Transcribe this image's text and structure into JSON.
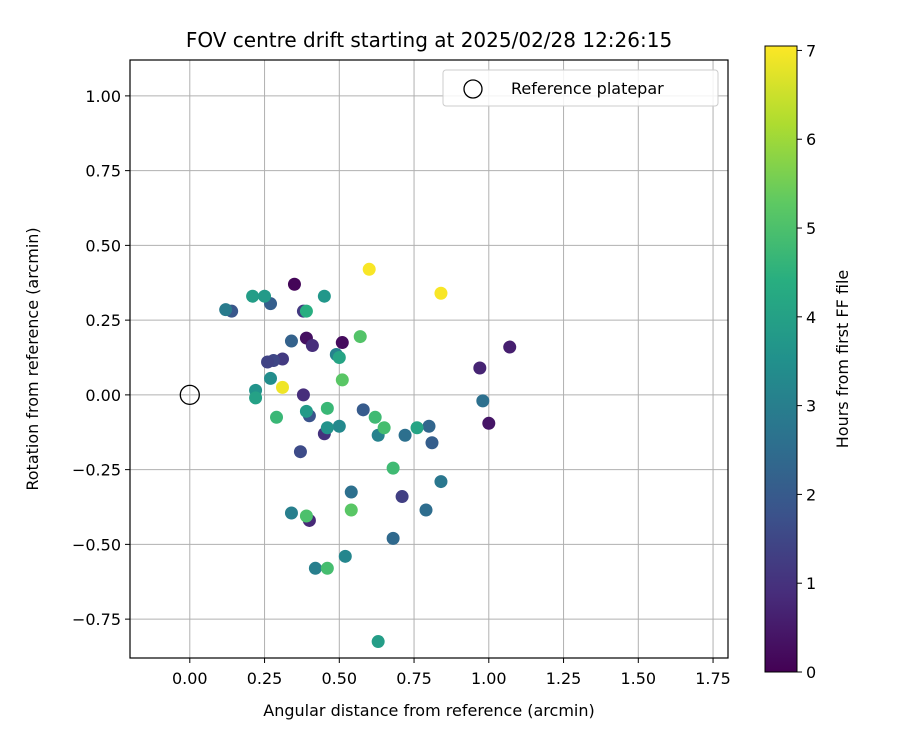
{
  "chart_data": {
    "type": "scatter",
    "title": "FOV centre drift starting at 2025/02/28 12:26:15",
    "xlabel": "Angular distance from reference (arcmin)",
    "ylabel": "Rotation from reference (arcmin)",
    "xlim": [
      -0.2,
      1.8
    ],
    "ylim": [
      -0.88,
      1.12
    ],
    "xticks": [
      0.0,
      0.25,
      0.5,
      0.75,
      1.0,
      1.25,
      1.5,
      1.75
    ],
    "xtick_labels": [
      "0.00",
      "0.25",
      "0.50",
      "0.75",
      "1.00",
      "1.25",
      "1.50",
      "1.75"
    ],
    "yticks": [
      -0.75,
      -0.5,
      -0.25,
      0.0,
      0.25,
      0.5,
      0.75,
      1.0
    ],
    "ytick_labels": [
      "−0.75",
      "−0.50",
      "−0.25",
      "0.00",
      "0.25",
      "0.50",
      "0.75",
      "1.00"
    ],
    "grid": true,
    "legend": {
      "position": "top-right",
      "label": "Reference platepar"
    },
    "reference_point": {
      "x": 0.0,
      "y": 0.0
    },
    "colorbar": {
      "label": "Hours from first FF file",
      "min": 0,
      "max": 7.05,
      "ticks": [
        0,
        1,
        2,
        3,
        4,
        5,
        6,
        7
      ],
      "tick_labels": [
        "0",
        "1",
        "2",
        "3",
        "4",
        "5",
        "6",
        "7"
      ],
      "colormap": "viridis"
    },
    "points": [
      {
        "x": 0.35,
        "y": 0.37,
        "c": 0.1
      },
      {
        "x": 0.39,
        "y": 0.19,
        "c": 0.3
      },
      {
        "x": 0.51,
        "y": 0.175,
        "c": 0.2
      },
      {
        "x": 1.07,
        "y": 0.16,
        "c": 0.6
      },
      {
        "x": 0.97,
        "y": 0.09,
        "c": 0.7
      },
      {
        "x": 1.0,
        "y": -0.095,
        "c": 0.4
      },
      {
        "x": 0.41,
        "y": 0.165,
        "c": 0.9
      },
      {
        "x": 0.31,
        "y": 0.12,
        "c": 1.2
      },
      {
        "x": 0.28,
        "y": 0.115,
        "c": 1.5
      },
      {
        "x": 0.26,
        "y": 0.11,
        "c": 1.4
      },
      {
        "x": 0.38,
        "y": 0.28,
        "c": 1.2
      },
      {
        "x": 0.38,
        "y": 0.0,
        "c": 0.9
      },
      {
        "x": 0.4,
        "y": -0.42,
        "c": 0.8
      },
      {
        "x": 0.71,
        "y": -0.34,
        "c": 1.3
      },
      {
        "x": 0.45,
        "y": -0.13,
        "c": 1.0
      },
      {
        "x": 0.37,
        "y": -0.19,
        "c": 1.6
      },
      {
        "x": 0.4,
        "y": -0.07,
        "c": 1.8
      },
      {
        "x": 0.58,
        "y": -0.05,
        "c": 2.0
      },
      {
        "x": 0.81,
        "y": -0.16,
        "c": 2.1
      },
      {
        "x": 0.8,
        "y": -0.105,
        "c": 2.3
      },
      {
        "x": 0.79,
        "y": -0.385,
        "c": 2.5
      },
      {
        "x": 0.72,
        "y": -0.135,
        "c": 2.6
      },
      {
        "x": 0.68,
        "y": -0.48,
        "c": 2.4
      },
      {
        "x": 0.54,
        "y": -0.325,
        "c": 2.6
      },
      {
        "x": 0.34,
        "y": 0.18,
        "c": 2.2
      },
      {
        "x": 0.27,
        "y": 0.305,
        "c": 2.1
      },
      {
        "x": 0.14,
        "y": 0.28,
        "c": 1.9
      },
      {
        "x": 0.12,
        "y": 0.285,
        "c": 2.9
      },
      {
        "x": 0.98,
        "y": -0.02,
        "c": 2.6
      },
      {
        "x": 0.84,
        "y": -0.29,
        "c": 2.8
      },
      {
        "x": 0.34,
        "y": -0.395,
        "c": 3.0
      },
      {
        "x": 0.42,
        "y": -0.58,
        "c": 3.0
      },
      {
        "x": 0.52,
        "y": -0.54,
        "c": 3.2
      },
      {
        "x": 0.63,
        "y": -0.135,
        "c": 3.1
      },
      {
        "x": 0.49,
        "y": 0.135,
        "c": 3.1
      },
      {
        "x": 0.5,
        "y": -0.105,
        "c": 3.3
      },
      {
        "x": 0.46,
        "y": -0.11,
        "c": 3.6
      },
      {
        "x": 0.39,
        "y": -0.055,
        "c": 3.8
      },
      {
        "x": 0.63,
        "y": -0.825,
        "c": 3.9
      },
      {
        "x": 0.21,
        "y": 0.33,
        "c": 3.9
      },
      {
        "x": 0.25,
        "y": 0.33,
        "c": 3.8
      },
      {
        "x": 0.45,
        "y": 0.33,
        "c": 3.7
      },
      {
        "x": 0.27,
        "y": 0.055,
        "c": 3.4
      },
      {
        "x": 0.22,
        "y": 0.015,
        "c": 3.6
      },
      {
        "x": 0.22,
        "y": -0.01,
        "c": 4.0
      },
      {
        "x": 0.5,
        "y": 0.125,
        "c": 4.1
      },
      {
        "x": 0.39,
        "y": 0.28,
        "c": 4.4
      },
      {
        "x": 0.76,
        "y": -0.11,
        "c": 4.1
      },
      {
        "x": 0.29,
        "y": -0.075,
        "c": 4.7
      },
      {
        "x": 0.46,
        "y": -0.045,
        "c": 4.7
      },
      {
        "x": 0.62,
        "y": -0.075,
        "c": 4.8
      },
      {
        "x": 0.65,
        "y": -0.11,
        "c": 4.9
      },
      {
        "x": 0.68,
        "y": -0.245,
        "c": 4.8
      },
      {
        "x": 0.39,
        "y": -0.405,
        "c": 5.0
      },
      {
        "x": 0.54,
        "y": -0.385,
        "c": 5.2
      },
      {
        "x": 0.46,
        "y": -0.58,
        "c": 4.9
      },
      {
        "x": 0.57,
        "y": 0.195,
        "c": 5.1
      },
      {
        "x": 0.51,
        "y": 0.05,
        "c": 5.2
      },
      {
        "x": 0.31,
        "y": 0.025,
        "c": 6.9
      },
      {
        "x": 0.6,
        "y": 0.42,
        "c": 7.0
      },
      {
        "x": 0.84,
        "y": 0.34,
        "c": 7.0
      }
    ]
  }
}
